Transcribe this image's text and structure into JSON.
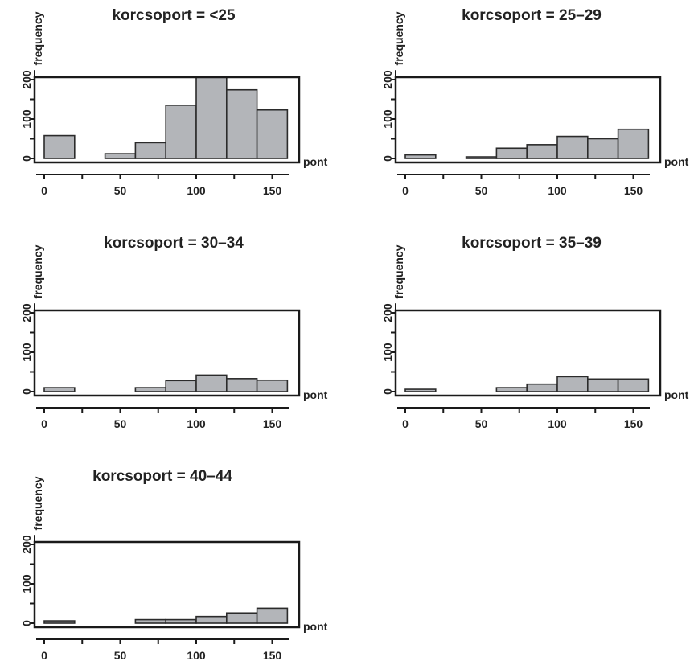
{
  "chart_data": [
    {
      "type": "bar",
      "title": "korcsoport = <25",
      "xlabel": "pont",
      "ylabel": "frequency",
      "bins": [
        [
          0,
          20
        ],
        [
          20,
          40
        ],
        [
          40,
          60
        ],
        [
          60,
          80
        ],
        [
          80,
          100
        ],
        [
          100,
          120
        ],
        [
          120,
          140
        ],
        [
          140,
          160
        ]
      ],
      "values": [
        58,
        0,
        12,
        40,
        135,
        208,
        174,
        123
      ],
      "xlim": [
        0,
        160
      ],
      "ylim": [
        0,
        220
      ],
      "xticks": [
        "0",
        "50",
        "100",
        "150"
      ],
      "yticks": [
        "0",
        "100",
        "200"
      ],
      "bar_color": "#b3b5b9"
    },
    {
      "type": "bar",
      "title": "korcsoport = 25–29",
      "xlabel": "pont",
      "ylabel": "frequency",
      "bins": [
        [
          0,
          20
        ],
        [
          20,
          40
        ],
        [
          40,
          60
        ],
        [
          60,
          80
        ],
        [
          80,
          100
        ],
        [
          100,
          120
        ],
        [
          120,
          140
        ],
        [
          140,
          160
        ]
      ],
      "values": [
        9,
        0,
        4,
        26,
        35,
        56,
        50,
        74
      ],
      "xlim": [
        0,
        160
      ],
      "ylim": [
        0,
        220
      ],
      "xticks": [
        "0",
        "50",
        "100",
        "150"
      ],
      "yticks": [
        "0",
        "100",
        "200"
      ],
      "bar_color": "#b3b5b9"
    },
    {
      "type": "bar",
      "title": "korcsoport = 30–34",
      "xlabel": "pont",
      "ylabel": "frequency",
      "bins": [
        [
          0,
          20
        ],
        [
          20,
          40
        ],
        [
          40,
          60
        ],
        [
          60,
          80
        ],
        [
          80,
          100
        ],
        [
          100,
          120
        ],
        [
          120,
          140
        ],
        [
          140,
          160
        ]
      ],
      "values": [
        10,
        0,
        0,
        10,
        28,
        42,
        33,
        29
      ],
      "xlim": [
        0,
        160
      ],
      "ylim": [
        0,
        220
      ],
      "xticks": [
        "0",
        "50",
        "100",
        "150"
      ],
      "yticks": [
        "0",
        "100",
        "200"
      ],
      "bar_color": "#b3b5b9"
    },
    {
      "type": "bar",
      "title": "korcsoport = 35–39",
      "xlabel": "pont",
      "ylabel": "frequency",
      "bins": [
        [
          0,
          20
        ],
        [
          20,
          40
        ],
        [
          40,
          60
        ],
        [
          60,
          80
        ],
        [
          80,
          100
        ],
        [
          100,
          120
        ],
        [
          120,
          140
        ],
        [
          140,
          160
        ]
      ],
      "values": [
        6,
        0,
        0,
        10,
        19,
        38,
        32,
        32
      ],
      "xlim": [
        0,
        160
      ],
      "ylim": [
        0,
        220
      ],
      "xticks": [
        "0",
        "50",
        "100",
        "150"
      ],
      "yticks": [
        "0",
        "100",
        "200"
      ],
      "bar_color": "#b3b5b9"
    },
    {
      "type": "bar",
      "title": "korcsoport = 40–44",
      "xlabel": "pont",
      "ylabel": "frequency",
      "bins": [
        [
          0,
          20
        ],
        [
          20,
          40
        ],
        [
          40,
          60
        ],
        [
          60,
          80
        ],
        [
          80,
          100
        ],
        [
          100,
          120
        ],
        [
          120,
          140
        ],
        [
          140,
          160
        ]
      ],
      "values": [
        6,
        0,
        0,
        9,
        9,
        17,
        26,
        38
      ],
      "xlim": [
        0,
        160
      ],
      "ylim": [
        0,
        220
      ],
      "xticks": [
        "0",
        "50",
        "100",
        "150"
      ],
      "yticks": [
        "0",
        "100",
        "200"
      ],
      "bar_color": "#b3b5b9"
    }
  ]
}
